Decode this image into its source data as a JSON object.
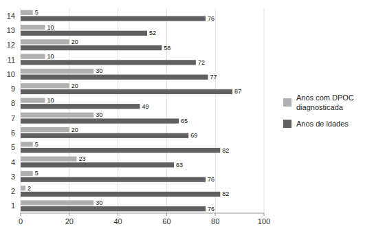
{
  "chart_data": {
    "type": "bar",
    "orientation": "horizontal",
    "categories": [
      1,
      2,
      3,
      4,
      5,
      6,
      7,
      8,
      9,
      10,
      11,
      12,
      13,
      14
    ],
    "series": [
      {
        "name": "Anos com DPOC\ndiagnosticada",
        "color": "#b0b0b0",
        "values": [
          30,
          2,
          5,
          23,
          5,
          20,
          30,
          10,
          20,
          30,
          10,
          20,
          10,
          5
        ]
      },
      {
        "name": "Anos de idades",
        "color": "#606060",
        "values": [
          76,
          82,
          76,
          63,
          82,
          69,
          65,
          49,
          87,
          77,
          72,
          58,
          52,
          76
        ]
      }
    ],
    "xlim": [
      0,
      100
    ],
    "xticks": [
      0,
      20,
      40,
      60,
      80,
      100
    ],
    "grid": true,
    "data_labels": true,
    "legend": "right"
  }
}
